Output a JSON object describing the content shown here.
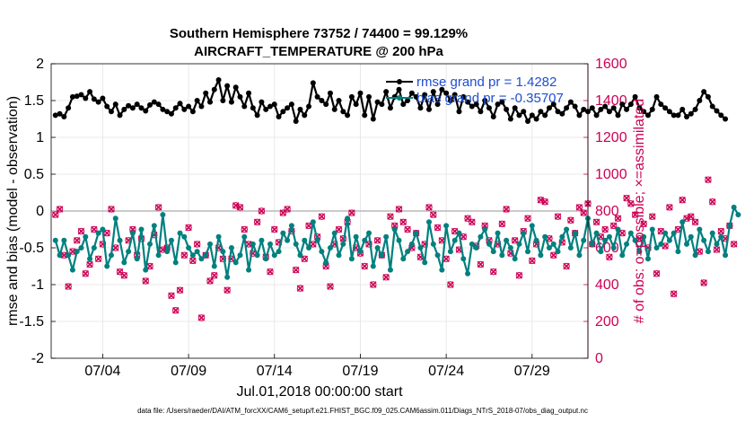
{
  "chart_data": {
    "type": "line",
    "title_line1": "Southern Hemisphere 73752 / 74400 = 99.129%",
    "title_line2": "AIRCRAFT_TEMPERATURE @ 200 hPa",
    "xlabel": "Jul.01,2018 00:00:00 start",
    "ylabel": "rmse and bias (model - observation)",
    "ylabel_right": "# of obs: o=possible; ×=assimilated",
    "ylim": [
      -2,
      2
    ],
    "ylim_right": [
      0,
      1600
    ],
    "xlim": [
      1.0,
      32.25
    ],
    "xticks": [
      4,
      9,
      14,
      19,
      24,
      29
    ],
    "xtick_labels": [
      "07/04",
      "07/09",
      "07/14",
      "07/19",
      "07/24",
      "07/29"
    ],
    "yticks": [
      -2,
      -1.5,
      -1,
      -0.5,
      0,
      0.5,
      1,
      1.5,
      2
    ],
    "ytick_labels": [
      "-2",
      "-1.5",
      "-1",
      "-0.5",
      "0",
      "0.5",
      "1",
      "1.5",
      "2"
    ],
    "yticks_right": [
      0,
      200,
      400,
      600,
      800,
      1000,
      1200,
      1400,
      1600
    ],
    "ytick_labels_right": [
      "0",
      "200",
      "400",
      "600",
      "800",
      "1000",
      "1200",
      "1400",
      "1600"
    ],
    "x_step_days": 0.25,
    "x_start_day": 1.25,
    "series": [
      {
        "name": "rmse grand pr = 1.4282",
        "color": "#000000",
        "axis": "left",
        "values": [
          1.3,
          1.32,
          1.28,
          1.4,
          1.55,
          1.56,
          1.58,
          1.53,
          1.62,
          1.52,
          1.48,
          1.53,
          1.42,
          1.35,
          1.45,
          1.3,
          1.38,
          1.43,
          1.4,
          1.45,
          1.4,
          1.36,
          1.44,
          1.48,
          1.45,
          1.38,
          1.35,
          1.32,
          1.4,
          1.46,
          1.38,
          1.42,
          1.35,
          1.5,
          1.42,
          1.6,
          1.48,
          1.65,
          1.78,
          1.5,
          1.7,
          1.48,
          1.68,
          1.55,
          1.42,
          1.6,
          1.4,
          1.3,
          1.48,
          1.38,
          1.42,
          1.45,
          1.28,
          1.35,
          1.4,
          1.45,
          1.22,
          1.38,
          1.3,
          1.42,
          1.74,
          1.55,
          1.5,
          1.45,
          1.6,
          1.38,
          1.5,
          1.35,
          1.3,
          1.55,
          1.45,
          1.6,
          1.3,
          1.55,
          1.25,
          1.48,
          1.45,
          1.62,
          1.4,
          1.55,
          1.65,
          1.45,
          1.5,
          1.6,
          1.55,
          1.4,
          1.58,
          1.38,
          1.62,
          1.45,
          1.65,
          1.6,
          1.5,
          1.58,
          1.35,
          1.55,
          1.48,
          1.42,
          1.45,
          1.35,
          1.5,
          1.4,
          1.28,
          1.45,
          1.48,
          1.38,
          1.25,
          1.4,
          1.3,
          1.35,
          1.22,
          1.3,
          1.25,
          1.35,
          1.3,
          1.4,
          1.45,
          1.35,
          1.32,
          1.4,
          1.48,
          1.42,
          1.3,
          1.38,
          1.35,
          1.4,
          1.3,
          1.38,
          1.42,
          1.35,
          1.4,
          1.3,
          1.45,
          1.38,
          1.45,
          1.55,
          1.4,
          1.35,
          1.3,
          1.38,
          1.55,
          1.45,
          1.4,
          1.35,
          1.3,
          1.3,
          1.38,
          1.28,
          1.32,
          1.38,
          1.5,
          1.62,
          1.55,
          1.42,
          1.36,
          1.3,
          1.25
        ]
      },
      {
        "name": "bias grand pr = -0.35707",
        "color": "#00807f",
        "axis": "left",
        "values": [
          -0.4,
          -0.6,
          -0.4,
          -0.6,
          -0.8,
          -0.55,
          -0.5,
          -0.35,
          -0.65,
          -0.5,
          -0.3,
          -0.25,
          -0.75,
          -0.6,
          -0.1,
          -0.4,
          -0.7,
          -0.55,
          -0.3,
          -0.65,
          -0.25,
          -0.8,
          -0.45,
          -0.2,
          -0.6,
          -0.05,
          -0.55,
          -0.4,
          -0.7,
          -0.3,
          -0.35,
          -0.5,
          -0.6,
          -0.55,
          -0.65,
          -0.6,
          -0.45,
          -0.75,
          -0.35,
          -0.55,
          -0.9,
          -0.5,
          -0.7,
          -0.6,
          -0.35,
          -0.8,
          -0.45,
          -0.6,
          -0.4,
          -0.65,
          -0.45,
          -0.6,
          -0.55,
          -0.3,
          -0.4,
          -0.2,
          -0.45,
          -0.6,
          -0.4,
          -0.5,
          -0.15,
          -0.4,
          -0.55,
          -0.7,
          -0.5,
          -0.3,
          -0.6,
          -0.45,
          -0.1,
          -0.65,
          -0.35,
          -0.55,
          -0.4,
          -0.3,
          -0.75,
          -0.5,
          -0.6,
          -0.35,
          -0.8,
          -0.25,
          -0.4,
          -0.65,
          -0.55,
          -0.45,
          -0.3,
          -0.5,
          -0.7,
          -0.15,
          -0.45,
          -0.6,
          -0.8,
          -0.2,
          -0.55,
          -0.4,
          -0.3,
          -0.65,
          -0.85,
          -0.45,
          -0.5,
          -0.35,
          -0.25,
          -0.45,
          -0.55,
          -0.3,
          -0.6,
          -0.4,
          -0.5,
          -0.65,
          -0.45,
          -0.3,
          -0.55,
          -0.2,
          -0.4,
          -0.6,
          -0.35,
          -0.5,
          -0.45,
          -0.55,
          -0.35,
          -0.25,
          -0.5,
          -0.3,
          -0.6,
          -0.4,
          -0.1,
          -0.45,
          -0.3,
          -0.55,
          -0.4,
          -0.35,
          -0.5,
          -0.25,
          -0.6,
          -0.45,
          -0.3,
          -0.4,
          -0.55,
          -0.35,
          -0.65,
          -0.25,
          -0.5,
          -0.45,
          -0.3,
          -0.4,
          -0.3,
          -0.55,
          -0.15,
          -0.45,
          -0.35,
          -0.6,
          -0.25,
          -0.4,
          -0.55,
          -0.3,
          -0.45,
          -0.35,
          -0.6,
          -0.2,
          0.05,
          -0.05
        ]
      }
    ],
    "scatter": [
      {
        "name": "possible",
        "marker": "o",
        "color": "#cc0055",
        "axis": "right",
        "values": [
          780,
          810,
          560,
          390,
          580,
          640,
          690,
          460,
          510,
          700,
          540,
          620,
          680,
          810,
          600,
          470,
          450,
          640,
          700,
          560,
          650,
          420,
          500,
          670,
          820,
          590,
          600,
          340,
          260,
          370,
          560,
          710,
          530,
          620,
          220,
          560,
          420,
          450,
          600,
          540,
          370,
          540,
          830,
          820,
          700,
          620,
          570,
          740,
          800,
          550,
          470,
          700,
          630,
          790,
          810,
          690,
          480,
          380,
          540,
          720,
          620,
          660,
          770,
          500,
          390,
          620,
          700,
          650,
          740,
          790,
          600,
          570,
          500,
          620,
          400,
          640,
          560,
          440,
          770,
          720,
          810,
          740,
          700,
          600,
          680,
          550,
          620,
          820,
          780,
          710,
          640,
          540,
          400,
          690,
          590,
          660,
          760,
          740,
          610,
          510,
          720,
          640,
          470,
          620,
          730,
          810,
          570,
          640,
          450,
          690,
          760,
          530,
          620,
          860,
          850,
          650,
          560,
          770,
          630,
          500,
          750,
          680,
          820,
          790,
          840,
          620,
          740,
          660,
          700,
          550,
          720,
          760,
          680,
          870,
          840,
          780,
          650,
          730,
          600,
          770,
          460,
          690,
          610,
          820,
          350,
          700,
          860,
          760,
          770,
          740,
          580,
          410,
          970,
          850,
          590,
          690,
          650,
          720,
          620
        ]
      },
      {
        "name": "assimilated",
        "marker": "x",
        "color": "#cc0055",
        "axis": "right",
        "values": [
          780,
          810,
          560,
          390,
          580,
          640,
          690,
          460,
          510,
          700,
          540,
          620,
          680,
          810,
          600,
          470,
          450,
          640,
          700,
          560,
          650,
          420,
          500,
          670,
          820,
          590,
          600,
          340,
          260,
          370,
          560,
          710,
          530,
          620,
          220,
          560,
          420,
          450,
          600,
          540,
          370,
          540,
          830,
          820,
          700,
          620,
          570,
          740,
          800,
          550,
          470,
          700,
          630,
          790,
          810,
          690,
          480,
          380,
          540,
          720,
          620,
          660,
          770,
          500,
          390,
          620,
          700,
          650,
          740,
          790,
          600,
          570,
          500,
          620,
          400,
          640,
          560,
          440,
          770,
          720,
          810,
          740,
          700,
          600,
          680,
          550,
          620,
          820,
          780,
          710,
          640,
          540,
          400,
          690,
          590,
          660,
          760,
          740,
          610,
          510,
          720,
          640,
          470,
          620,
          730,
          810,
          570,
          640,
          450,
          690,
          760,
          530,
          620,
          860,
          850,
          650,
          560,
          770,
          630,
          500,
          750,
          680,
          820,
          790,
          840,
          620,
          740,
          660,
          700,
          550,
          720,
          760,
          680,
          870,
          840,
          780,
          650,
          730,
          600,
          770,
          460,
          690,
          610,
          820,
          350,
          700,
          860,
          760,
          770,
          740,
          580,
          410,
          970,
          850,
          590,
          690,
          650,
          720,
          620
        ]
      }
    ],
    "legend": {
      "placement": "top-right",
      "entries": [
        "rmse grand pr = 1.4282",
        "bias grand pr = -0.35707"
      ]
    },
    "zero_line": true
  },
  "footer_text": "data file: /Users/raeder/DAI/ATM_forcXX/CAM6_setup/f.e21.FHIST_BGC.f09_025.CAM6assim.011/Diags_NTrS_2018-07/obs_diag_output.nc"
}
